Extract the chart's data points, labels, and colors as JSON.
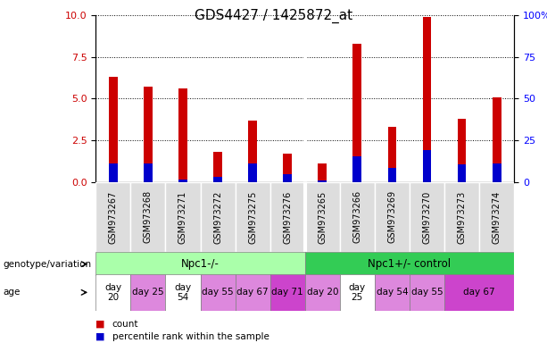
{
  "title": "GDS4427 / 1425872_at",
  "samples": [
    "GSM973267",
    "GSM973268",
    "GSM973271",
    "GSM973272",
    "GSM973275",
    "GSM973276",
    "GSM973265",
    "GSM973266",
    "GSM973269",
    "GSM973270",
    "GSM973273",
    "GSM973274"
  ],
  "count_values": [
    6.3,
    5.7,
    5.6,
    1.8,
    3.7,
    1.7,
    1.1,
    8.3,
    3.3,
    9.9,
    3.8,
    5.1
  ],
  "percentile_values": [
    1.1,
    1.1,
    0.15,
    0.3,
    1.1,
    0.45,
    0.1,
    1.55,
    0.85,
    1.9,
    1.05,
    1.1
  ],
  "bar_width": 0.25,
  "count_color": "#cc0000",
  "percentile_color": "#0000cc",
  "ylim_left": [
    0,
    10
  ],
  "ylim_right": [
    0,
    100
  ],
  "yticks_left": [
    0,
    2.5,
    5.0,
    7.5,
    10
  ],
  "yticks_right": [
    0,
    25,
    50,
    75,
    100
  ],
  "ytick_labels_right": [
    "0",
    "25",
    "50",
    "75",
    "100%"
  ],
  "genotype_groups": [
    {
      "label": "Npc1-/-",
      "start": 0,
      "end": 6,
      "color": "#aaffaa"
    },
    {
      "label": "Npc1+/- control",
      "start": 6,
      "end": 12,
      "color": "#33cc55"
    }
  ],
  "age_spans": [
    {
      "label": "day\n20",
      "start": 0,
      "end": 1,
      "color": "#ffffff"
    },
    {
      "label": "day 25",
      "start": 1,
      "end": 2,
      "color": "#dd88dd"
    },
    {
      "label": "day\n54",
      "start": 2,
      "end": 3,
      "color": "#ffffff"
    },
    {
      "label": "day 55",
      "start": 3,
      "end": 4,
      "color": "#dd88dd"
    },
    {
      "label": "day 67",
      "start": 4,
      "end": 5,
      "color": "#dd88dd"
    },
    {
      "label": "day 71",
      "start": 5,
      "end": 6,
      "color": "#cc44cc"
    },
    {
      "label": "day 20",
      "start": 6,
      "end": 7,
      "color": "#dd88dd"
    },
    {
      "label": "day\n25",
      "start": 7,
      "end": 8,
      "color": "#ffffff"
    },
    {
      "label": "day 54",
      "start": 8,
      "end": 9,
      "color": "#dd88dd"
    },
    {
      "label": "day 55",
      "start": 9,
      "end": 10,
      "color": "#dd88dd"
    },
    {
      "label": "day 67",
      "start": 10,
      "end": 12,
      "color": "#cc44cc"
    }
  ],
  "genotype_label": "genotype/variation",
  "age_label": "age",
  "legend_count": "count",
  "legend_percentile": "percentile rank within the sample",
  "title_fontsize": 11,
  "tick_fontsize": 8
}
